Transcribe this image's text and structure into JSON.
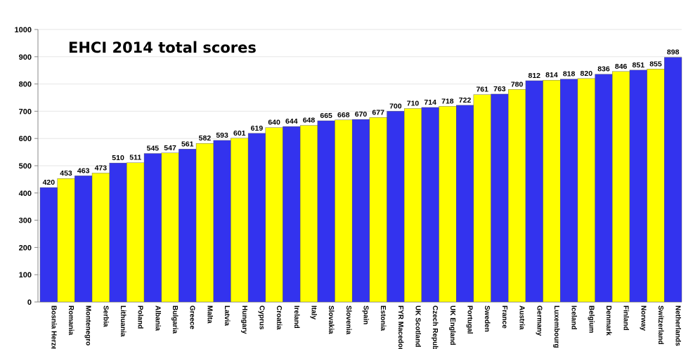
{
  "chart_data": {
    "type": "bar",
    "title": "EHCI 2014 total scores",
    "xlabel": "",
    "ylabel": "",
    "ylim": [
      0,
      1000
    ],
    "yticks": [
      0,
      100,
      200,
      300,
      400,
      500,
      600,
      700,
      800,
      900,
      1000
    ],
    "grid": true,
    "colors": [
      "#3333ee",
      "#ffff00"
    ],
    "categories": [
      "Bosnia Herzego",
      "Romania",
      "Montenegro",
      "Serbia",
      "Lithuania",
      "Poland",
      "Albania",
      "Bulgaria",
      "Greece",
      "Malta",
      "Latvia",
      "Hungary",
      "Cyprus",
      "Croatia",
      "Ireland",
      "Italy",
      "Slovakia",
      "Slovenia",
      "Spain",
      "Estonia",
      "FYR Macedonia",
      "UK Scotland",
      "Czech Republic",
      "UK England",
      "Portugal",
      "Sweden",
      "France",
      "Austria",
      "Germany",
      "Luxembourg",
      "Iceland",
      "Belgium",
      "Denmark",
      "Finland",
      "Norway",
      "Switzerland",
      "Netherlands"
    ],
    "values": [
      420,
      453,
      463,
      473,
      510,
      511,
      545,
      547,
      561,
      582,
      593,
      601,
      619,
      640,
      644,
      648,
      665,
      668,
      670,
      677,
      700,
      710,
      714,
      718,
      722,
      761,
      763,
      780,
      812,
      814,
      818,
      820,
      836,
      846,
      851,
      855,
      898
    ]
  }
}
